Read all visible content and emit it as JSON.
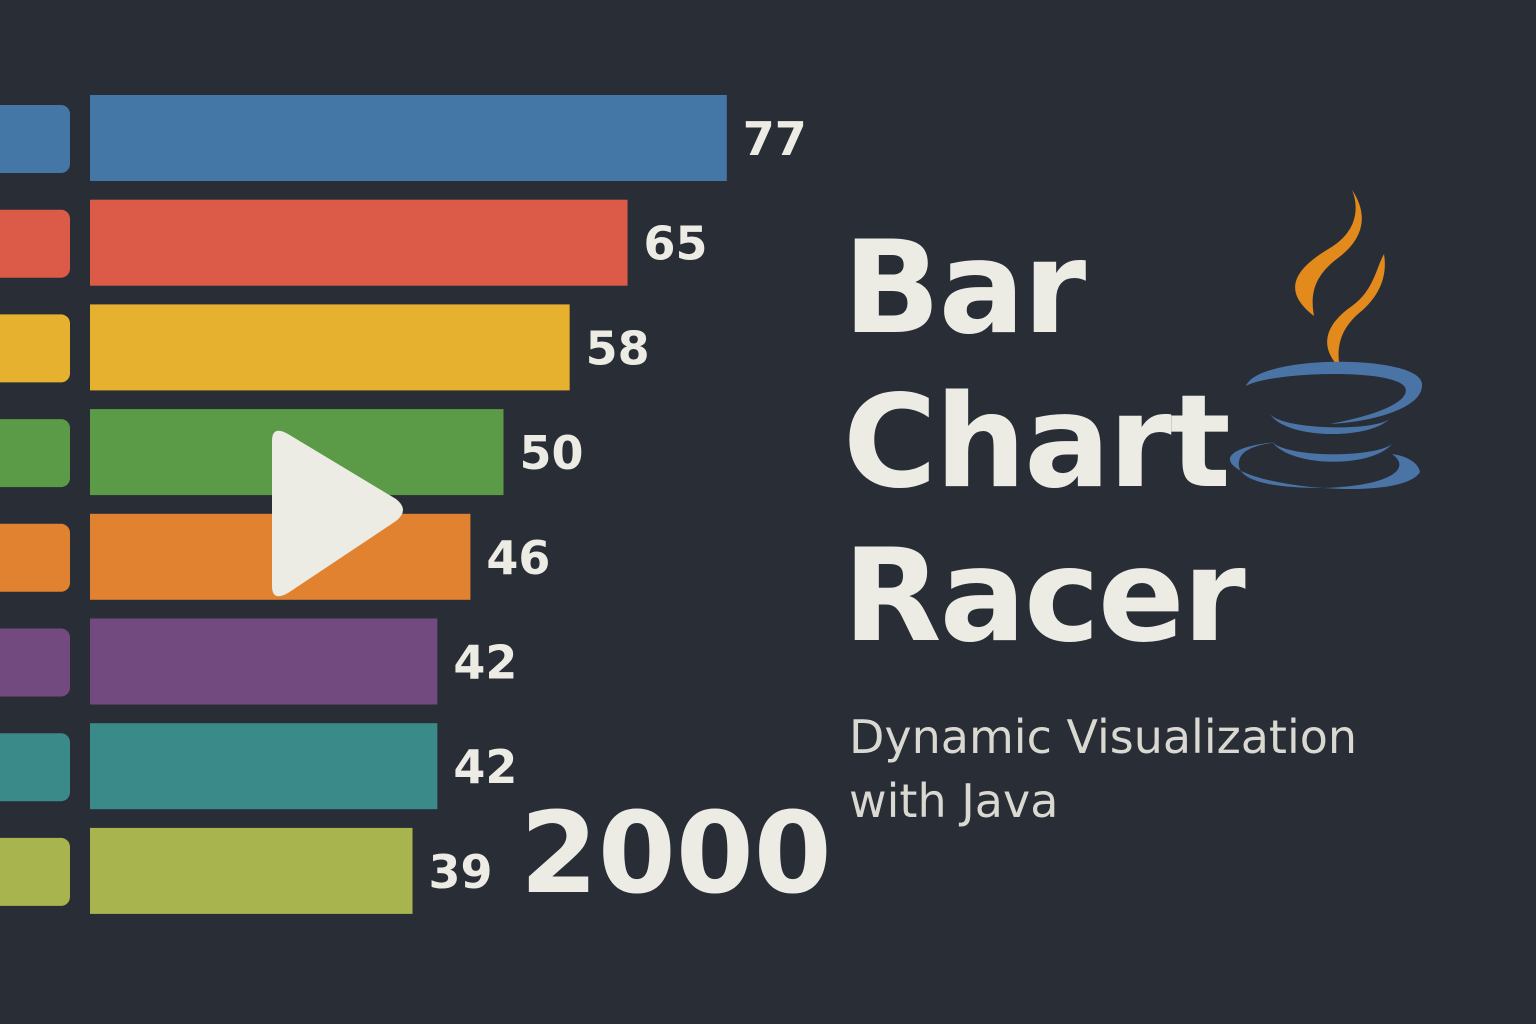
{
  "chart_data": {
    "type": "bar",
    "orientation": "horizontal",
    "values": [
      77,
      65,
      58,
      50,
      46,
      42,
      42,
      39
    ],
    "value_labels": [
      "77",
      "65",
      "58",
      "50",
      "46",
      "42",
      "42",
      "39"
    ],
    "colors": [
      "#4476a6",
      "#db5b48",
      "#e5b12f",
      "#5b9b48",
      "#e0822f",
      "#734a80",
      "#3a8a8a",
      "#a8b44e"
    ],
    "period_label": "2000",
    "grid": false,
    "legend": "none"
  },
  "title": {
    "line1": "Bar",
    "line2": "Chart",
    "line3": "Racer"
  },
  "subtitle": {
    "line1": "Dynamic Visualization",
    "line2": "with Java"
  },
  "icons": {
    "logo": "java-coffee-cup-icon",
    "play": "play-icon",
    "steam_color": "#e28a1c",
    "cup_color": "#4a73a6"
  }
}
